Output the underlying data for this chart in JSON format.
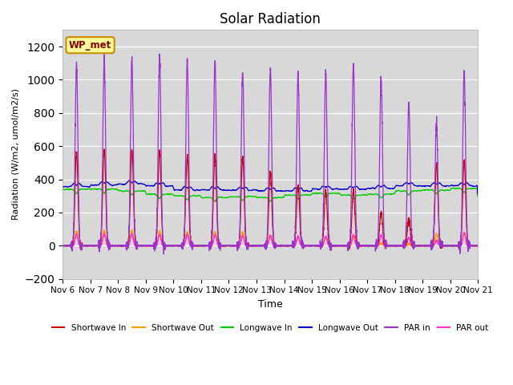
{
  "title": "Solar Radiation",
  "ylabel": "Radiation (W/m2, umol/m2/s)",
  "xlabel": "Time",
  "xlim_days": [
    0,
    15
  ],
  "ylim": [
    -200,
    1300
  ],
  "yticks": [
    -200,
    0,
    200,
    400,
    600,
    800,
    1000,
    1200
  ],
  "xtick_labels": [
    "Nov 6",
    "Nov 7",
    "Nov 8",
    "Nov 9",
    "Nov 10",
    "Nov 11",
    "Nov 12",
    "Nov 13",
    "Nov 14",
    "Nov 15",
    "Nov 16",
    "Nov 17",
    "Nov 18",
    "Nov 19",
    "Nov 20",
    "Nov 21"
  ],
  "legend_entries": [
    "Shortwave In",
    "Shortwave Out",
    "Longwave In",
    "Longwave Out",
    "PAR in",
    "PAR out"
  ],
  "legend_colors": [
    "#cc0000",
    "#ff9900",
    "#00cc00",
    "#0000cc",
    "#9933cc",
    "#ff33cc"
  ],
  "background_color": "#ffffff",
  "plot_bg_color": "#d8d8d8",
  "label_box_color": "#ffff99",
  "label_box_edge": "#cc8800",
  "label_text": "WP_met",
  "n_days": 15,
  "shortwave_in_peaks": [
    560,
    580,
    580,
    570,
    540,
    550,
    530,
    440,
    360,
    330,
    330,
    200,
    160,
    490,
    510
  ],
  "shortwave_out_peaks": [
    85,
    90,
    90,
    85,
    80,
    80,
    80,
    60,
    50,
    50,
    50,
    15,
    10,
    70,
    75
  ],
  "longwave_in_base": [
    340,
    340,
    330,
    310,
    300,
    290,
    295,
    290,
    305,
    315,
    305,
    310,
    330,
    335,
    345
  ],
  "longwave_out_base": [
    355,
    365,
    370,
    360,
    335,
    335,
    335,
    330,
    330,
    340,
    340,
    345,
    360,
    360,
    360
  ],
  "par_in_peaks": [
    1100,
    1120,
    1130,
    1140,
    1120,
    1110,
    1050,
    1060,
    1040,
    1040,
    1090,
    1000,
    860,
    740,
    1050
  ],
  "par_out_peaks": [
    65,
    70,
    70,
    65,
    65,
    65,
    60,
    60,
    55,
    55,
    65,
    60,
    50,
    30,
    75
  ],
  "rise_hour": 7.0,
  "set_hour": 17.0,
  "peak_sharpness": 6.0
}
